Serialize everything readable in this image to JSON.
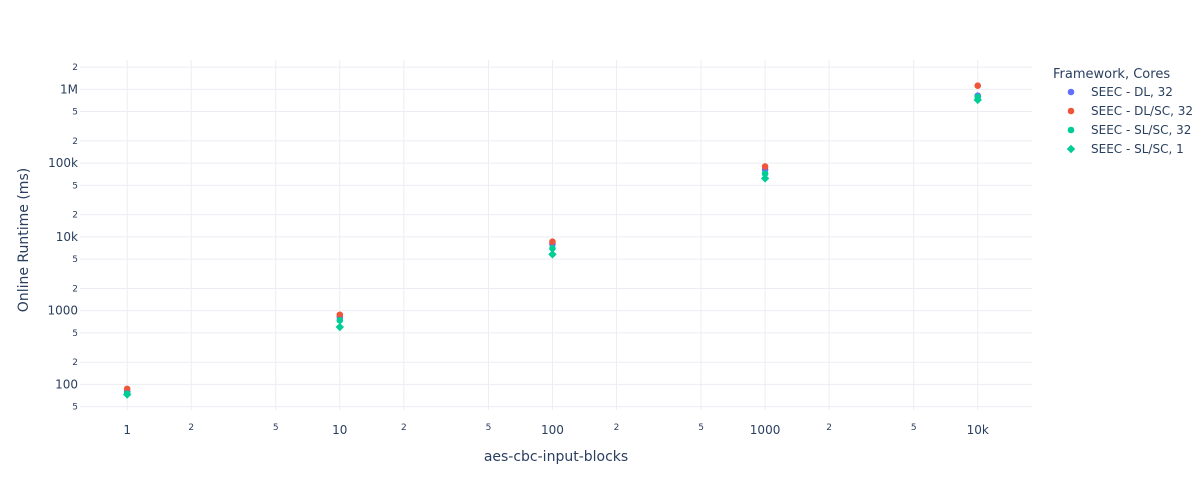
{
  "chart_data": {
    "type": "scatter",
    "xlabel": "aes-cbc-input-blocks",
    "ylabel": "Online Runtime (ms)",
    "x_scale": "log",
    "y_scale": "log",
    "xlim": [
      0.6,
      18000
    ],
    "ylim": [
      45,
      2500000
    ],
    "grid": true,
    "legend_title": "Framework, Cores",
    "legend_position": "right",
    "x_major_ticks": [
      {
        "value": 1,
        "label": "1"
      },
      {
        "value": 10,
        "label": "10"
      },
      {
        "value": 100,
        "label": "100"
      },
      {
        "value": 1000,
        "label": "1000"
      },
      {
        "value": 10000,
        "label": "10k"
      }
    ],
    "x_minor_ticks": [
      {
        "value": 2,
        "label": "2"
      },
      {
        "value": 5,
        "label": "5"
      },
      {
        "value": 20,
        "label": "2"
      },
      {
        "value": 50,
        "label": "5"
      },
      {
        "value": 200,
        "label": "2"
      },
      {
        "value": 500,
        "label": "5"
      },
      {
        "value": 2000,
        "label": "2"
      },
      {
        "value": 5000,
        "label": "5"
      }
    ],
    "y_major_ticks": [
      {
        "value": 100,
        "label": "100"
      },
      {
        "value": 1000,
        "label": "1000"
      },
      {
        "value": 10000,
        "label": "10k"
      },
      {
        "value": 100000,
        "label": "100k"
      },
      {
        "value": 1000000,
        "label": "1M"
      }
    ],
    "y_minor_ticks": [
      {
        "value": 50,
        "label": "5"
      },
      {
        "value": 200,
        "label": "2"
      },
      {
        "value": 500,
        "label": "5"
      },
      {
        "value": 2000,
        "label": "2"
      },
      {
        "value": 5000,
        "label": "5"
      },
      {
        "value": 20000,
        "label": "2"
      },
      {
        "value": 50000,
        "label": "5"
      },
      {
        "value": 200000,
        "label": "2"
      },
      {
        "value": 500000,
        "label": "5"
      },
      {
        "value": 2000000,
        "label": "2"
      }
    ],
    "series": [
      {
        "name": "SEEC - DL, 32",
        "color": "#636efa",
        "marker": "circle",
        "x": [
          1,
          10,
          100,
          1000,
          10000
        ],
        "y": [
          80,
          820,
          8000,
          82000,
          820000
        ]
      },
      {
        "name": "SEEC - DL/SC, 32",
        "color": "#ef553b",
        "marker": "circle",
        "x": [
          1,
          10,
          100,
          1000,
          10000
        ],
        "y": [
          87,
          880,
          8600,
          90000,
          1120000
        ]
      },
      {
        "name": "SEEC - SL/SC, 32",
        "color": "#00cc96",
        "marker": "circle",
        "x": [
          1,
          10,
          100,
          1000,
          10000
        ],
        "y": [
          75,
          740,
          7000,
          72000,
          790000
        ]
      },
      {
        "name": "SEEC - SL/SC, 1",
        "color": "#00cc96",
        "marker": "diamond",
        "x": [
          1,
          10,
          100,
          1000,
          10000
        ],
        "y": [
          73,
          600,
          5800,
          62000,
          720000
        ]
      }
    ]
  }
}
